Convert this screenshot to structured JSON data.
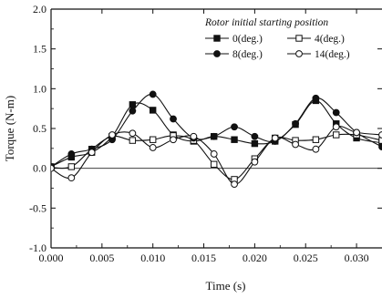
{
  "chart_data": {
    "type": "line",
    "xlabel": "Time (s)",
    "ylabel": "Torque (N-m)",
    "xlim": [
      0.0,
      0.0325
    ],
    "ylim": [
      -1.0,
      2.0
    ],
    "xticks": [
      0.0,
      0.005,
      0.01,
      0.015,
      0.02,
      0.025,
      0.03
    ],
    "xtick_labels": [
      "0.000",
      "0.005",
      "0.010",
      "0.015",
      "0.020",
      "0.025",
      "0.030"
    ],
    "yticks": [
      -1.0,
      -0.5,
      0.0,
      0.5,
      1.0,
      1.5,
      2.0
    ],
    "ytick_labels": [
      "-1.0",
      "-0.5",
      "0.0",
      "0.5",
      "1.0",
      "1.5",
      "2.0"
    ],
    "reference_line_y": 0.0,
    "grid": false,
    "legend": {
      "title": "Rotor initial starting position",
      "placement": "top-right"
    },
    "x": [
      0.0,
      0.002,
      0.004,
      0.006,
      0.008,
      0.01,
      0.012,
      0.014,
      0.016,
      0.018,
      0.02,
      0.022,
      0.024,
      0.026,
      0.028,
      0.03,
      0.0325
    ],
    "series": [
      {
        "name": "0(deg.)",
        "marker": "square-filled",
        "values": [
          0.02,
          0.14,
          0.2,
          0.4,
          0.8,
          0.73,
          0.42,
          0.34,
          0.4,
          0.36,
          0.31,
          0.34,
          0.55,
          0.85,
          0.56,
          0.38,
          0.32
        ]
      },
      {
        "name": "4(deg.)",
        "marker": "square-open",
        "values": [
          0.01,
          0.02,
          0.24,
          0.4,
          0.35,
          0.36,
          0.41,
          0.35,
          0.05,
          -0.14,
          0.12,
          0.38,
          0.35,
          0.36,
          0.42,
          0.42,
          0.35
        ]
      },
      {
        "name": "8(deg.)",
        "marker": "circle-filled",
        "values": [
          0.02,
          0.18,
          0.24,
          0.36,
          0.72,
          0.93,
          0.62,
          0.38,
          0.4,
          0.52,
          0.4,
          0.34,
          0.56,
          0.88,
          0.7,
          0.45,
          0.27
        ]
      },
      {
        "name": "14(deg.)",
        "marker": "circle-open",
        "values": [
          0.0,
          -0.12,
          0.2,
          0.42,
          0.44,
          0.26,
          0.36,
          0.4,
          0.18,
          -0.2,
          0.08,
          0.38,
          0.3,
          0.24,
          0.52,
          0.45,
          0.42
        ]
      }
    ]
  }
}
